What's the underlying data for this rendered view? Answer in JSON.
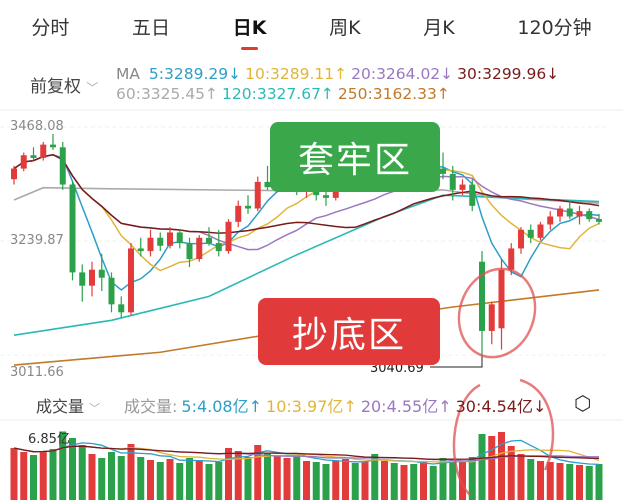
{
  "tabs": [
    "分时",
    "五日",
    "日K",
    "周K",
    "月K",
    "120分钟"
  ],
  "selected_tab": "日K",
  "adjust": {
    "label": "前复权",
    "icon": "chevron-down-icon"
  },
  "ma_legend": {
    "prefix": "MA",
    "items": [
      {
        "text": "5:3289.29↓",
        "color": "#2b9fc9"
      },
      {
        "text": "10:3289.11↑",
        "color": "#e0b53a"
      },
      {
        "text": "20:3264.02↓",
        "color": "#9a78c0"
      },
      {
        "text": "30:3299.96↓",
        "color": "#7a1a1a"
      },
      {
        "text": "60:3325.45↑",
        "color": "#aaaaaa"
      },
      {
        "text": "120:3327.67↑",
        "color": "#2bb9b4"
      },
      {
        "text": "250:3162.33↑",
        "color": "#c07a2a"
      }
    ]
  },
  "volume_header": {
    "selector": "成交量",
    "label": "成交量:",
    "items": [
      {
        "text": "5:4.08亿↑",
        "color": "#2b9fc9"
      },
      {
        "text": "10:3.97亿↑",
        "color": "#e0b53a"
      },
      {
        "text": "20:4.55亿↑",
        "color": "#9a78c0"
      },
      {
        "text": "30:4.54亿↓",
        "color": "#7a1a1a"
      }
    ],
    "settings_icon": "hexagon-settings-icon"
  },
  "annotations": {
    "trap_zone": "套牢区",
    "bottom_zone": "抄底区",
    "trap_color": "#3aa84a",
    "bottom_color": "#e03a3a"
  },
  "colors": {
    "up": "#e23b3b",
    "down": "#2aa14a"
  },
  "chart_data": {
    "type": "candlestick",
    "y_ticks": [
      "3468.08",
      "3239.87",
      "3011.66"
    ],
    "ylim": [
      3011.66,
      3468.08
    ],
    "low_label": "3040.69",
    "volume_max_label": "6.85亿",
    "candles": [
      [
        3370,
        3395,
        3360,
        3390
      ],
      [
        3390,
        3420,
        3385,
        3415
      ],
      [
        3415,
        3430,
        3405,
        3410
      ],
      [
        3410,
        3440,
        3405,
        3435
      ],
      [
        3435,
        3455,
        3425,
        3430
      ],
      [
        3430,
        3440,
        3350,
        3360
      ],
      [
        3360,
        3365,
        3180,
        3195
      ],
      [
        3195,
        3210,
        3140,
        3170
      ],
      [
        3170,
        3215,
        3150,
        3200
      ],
      [
        3200,
        3230,
        3160,
        3185
      ],
      [
        3185,
        3195,
        3120,
        3135
      ],
      [
        3135,
        3150,
        3110,
        3120
      ],
      [
        3120,
        3250,
        3115,
        3240
      ],
      [
        3240,
        3260,
        3225,
        3235
      ],
      [
        3235,
        3275,
        3225,
        3260
      ],
      [
        3260,
        3270,
        3235,
        3245
      ],
      [
        3245,
        3280,
        3240,
        3270
      ],
      [
        3270,
        3275,
        3240,
        3250
      ],
      [
        3250,
        3260,
        3205,
        3220
      ],
      [
        3220,
        3265,
        3215,
        3260
      ],
      [
        3260,
        3280,
        3245,
        3250
      ],
      [
        3250,
        3275,
        3225,
        3235
      ],
      [
        3235,
        3295,
        3230,
        3290
      ],
      [
        3290,
        3330,
        3280,
        3320
      ],
      [
        3320,
        3340,
        3305,
        3315
      ],
      [
        3315,
        3375,
        3310,
        3365
      ],
      [
        3365,
        3395,
        3350,
        3355
      ],
      [
        3355,
        3385,
        3345,
        3380
      ],
      [
        3380,
        3400,
        3370,
        3385
      ],
      [
        3385,
        3395,
        3340,
        3350
      ],
      [
        3350,
        3380,
        3335,
        3375
      ],
      [
        3375,
        3390,
        3330,
        3340
      ],
      [
        3340,
        3350,
        3320,
        3335
      ],
      [
        3335,
        3370,
        3330,
        3365
      ],
      [
        3365,
        3385,
        3355,
        3375
      ],
      [
        3375,
        3390,
        3360,
        3370
      ],
      [
        3370,
        3395,
        3365,
        3390
      ],
      [
        3390,
        3400,
        3375,
        3380
      ],
      [
        3380,
        3395,
        3370,
        3390
      ],
      [
        3390,
        3405,
        3380,
        3385
      ],
      [
        3385,
        3400,
        3375,
        3395
      ],
      [
        3395,
        3410,
        3385,
        3390
      ],
      [
        3390,
        3415,
        3385,
        3405
      ],
      [
        3405,
        3420,
        3390,
        3395
      ],
      [
        3390,
        3420,
        3370,
        3380
      ],
      [
        3380,
        3395,
        3330,
        3350
      ],
      [
        3350,
        3370,
        3340,
        3360
      ],
      [
        3360,
        3370,
        3310,
        3320
      ],
      [
        3215,
        3235,
        3040.69,
        3085
      ],
      [
        3085,
        3140,
        3060,
        3135
      ],
      [
        3090,
        3220,
        3050,
        3200
      ],
      [
        3200,
        3250,
        3190,
        3240
      ],
      [
        3240,
        3280,
        3230,
        3275
      ],
      [
        3275,
        3285,
        3250,
        3260
      ],
      [
        3260,
        3290,
        3255,
        3285
      ],
      [
        3285,
        3310,
        3275,
        3300
      ],
      [
        3300,
        3320,
        3290,
        3315
      ],
      [
        3315,
        3330,
        3295,
        3300
      ],
      [
        3300,
        3320,
        3285,
        3310
      ],
      [
        3310,
        3315,
        3290,
        3295
      ],
      [
        3295,
        3305,
        3285,
        3290
      ]
    ],
    "long_ma": [
      {
        "name": "60",
        "color": "#aaaaaa",
        "points": [
          [
            0,
            3331
          ],
          [
            3,
            3354
          ],
          [
            10,
            3352
          ],
          [
            30,
            3348
          ],
          [
            44,
            3350
          ],
          [
            50,
            3335
          ],
          [
            60,
            3325
          ]
        ]
      },
      {
        "name": "120",
        "color": "#2bb9b4",
        "points": [
          [
            0,
            3077
          ],
          [
            10,
            3105
          ],
          [
            20,
            3150
          ],
          [
            29,
            3228
          ],
          [
            38,
            3300
          ],
          [
            44,
            3340
          ],
          [
            60,
            3328
          ]
        ]
      },
      {
        "name": "250",
        "color": "#c07a2a",
        "points": [
          [
            0,
            3021
          ],
          [
            15,
            3045
          ],
          [
            29,
            3087
          ],
          [
            45,
            3130
          ],
          [
            60,
            3162
          ]
        ]
      }
    ],
    "volumes": [
      5.2,
      4.8,
      4.5,
      4.9,
      5.1,
      6.85,
      6.2,
      5.5,
      4.6,
      4.2,
      4.8,
      4.4,
      5.6,
      4.3,
      4.0,
      3.8,
      4.1,
      3.7,
      4.2,
      3.9,
      3.6,
      3.8,
      5.2,
      4.9,
      4.3,
      5.5,
      4.7,
      4.4,
      4.2,
      4.5,
      3.9,
      3.8,
      3.6,
      3.9,
      4.1,
      3.7,
      3.8,
      4.6,
      3.9,
      3.7,
      3.5,
      3.6,
      3.8,
      3.4,
      4.2,
      4.0,
      3.8,
      4.3,
      6.6,
      6.4,
      6.8,
      5.4,
      4.6,
      4.1,
      3.9,
      3.8,
      3.7,
      3.6,
      3.5,
      3.4,
      3.6
    ]
  }
}
